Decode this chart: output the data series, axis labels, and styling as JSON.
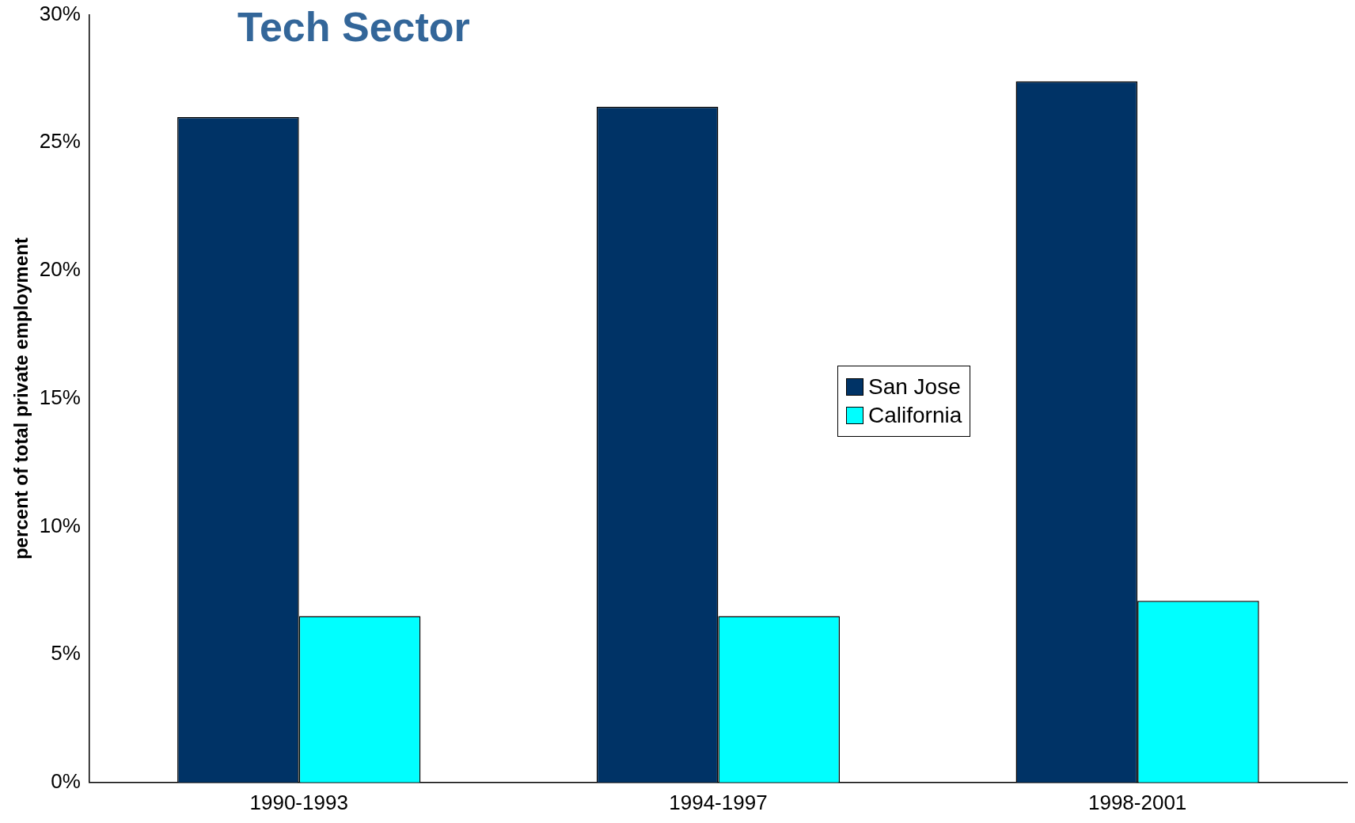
{
  "chart_data": {
    "type": "bar",
    "title": "Tech Sector",
    "ylabel": "percent of total private employment",
    "categories": [
      "1990-1993",
      "1994-1997",
      "1998-2001"
    ],
    "series": [
      {
        "name": "San Jose",
        "color": "#003366",
        "values": [
          26.0,
          26.4,
          27.4
        ]
      },
      {
        "name": "California",
        "color": "#00ffff",
        "values": [
          6.5,
          6.5,
          7.1
        ]
      }
    ],
    "ylim": [
      0,
      30
    ],
    "yticks": [
      {
        "value": 0,
        "label": "0%"
      },
      {
        "value": 5,
        "label": "5%"
      },
      {
        "value": 10,
        "label": "10%"
      },
      {
        "value": 15,
        "label": "15%"
      },
      {
        "value": 20,
        "label": "20%"
      },
      {
        "value": 25,
        "label": "25%"
      },
      {
        "value": 30,
        "label": "30%"
      }
    ],
    "grid": false,
    "legend": "right"
  }
}
